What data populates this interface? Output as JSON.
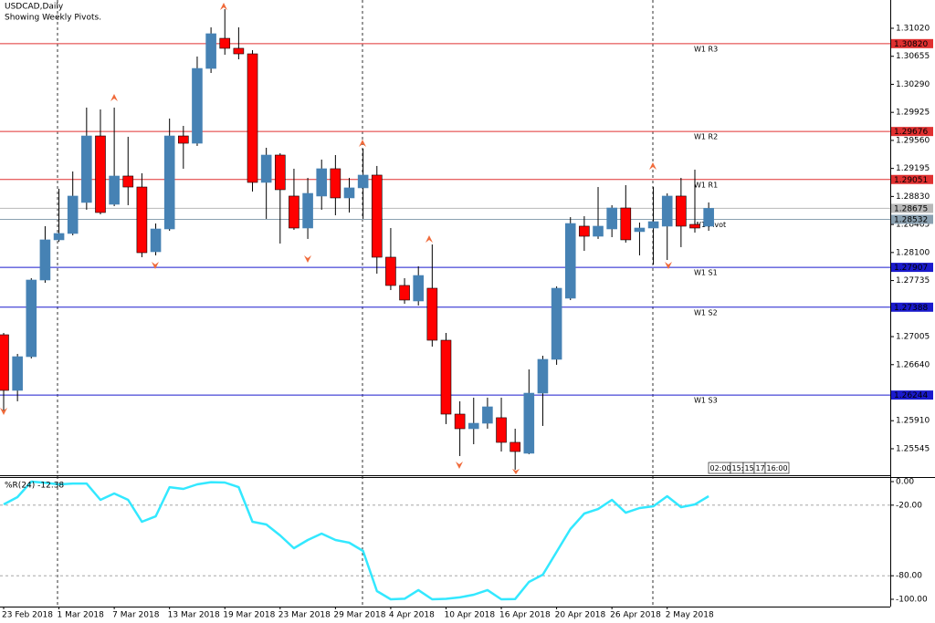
{
  "chart_data": {
    "type": "candlestick",
    "title": "USDCAD,Daily",
    "subtitle": "Showing Weekly Pivots.",
    "categories": [
      "23 Feb 2018",
      null,
      null,
      null,
      "1 Mar 2018",
      null,
      null,
      null,
      "7 Mar 2018",
      null,
      null,
      null,
      "13 Mar 2018",
      null,
      null,
      null,
      "19 Mar 2018",
      null,
      null,
      null,
      "23 Mar 2018",
      null,
      null,
      null,
      "29 Mar 2018",
      null,
      null,
      null,
      "4 Apr 2018",
      null,
      null,
      null,
      "10 Apr 2018",
      null,
      null,
      null,
      "16 Apr 2018",
      null,
      null,
      null,
      "20 Apr 2018",
      null,
      null,
      null,
      "26 Apr 2018",
      null,
      null,
      null,
      "2 May 2018",
      null,
      null,
      null
    ],
    "open": [
      1.27029,
      1.26305,
      1.26744,
      1.27742,
      1.28265,
      1.28348,
      1.28752,
      1.29618,
      1.28728,
      1.29096,
      1.28953,
      1.2811,
      1.28407,
      1.29618,
      1.29523,
      1.30497,
      1.30889,
      1.30759,
      1.30687,
      1.29013,
      1.29369,
      1.28835,
      1.28419,
      1.28835,
      1.29191,
      1.28811,
      1.28942,
      1.29108,
      1.28039,
      1.27671,
      1.27469,
      1.27635,
      1.26958,
      1.25996,
      1.25806,
      1.25877,
      1.25949,
      1.25628,
      1.25486,
      1.26269,
      1.26709,
      1.27505,
      1.28443,
      1.28312,
      1.28407,
      1.2868,
      1.28372,
      1.28419,
      1.28443,
      1.28835,
      1.28466,
      1.28443
    ],
    "high": [
      1.27053,
      1.2678,
      1.27766,
      1.28443,
      1.2893,
      1.29155,
      1.29987,
      1.29963,
      1.29987,
      1.29607,
      1.29132,
      1.28478,
      1.29844,
      1.29749,
      1.30652,
      1.31032,
      1.31269,
      1.31032,
      1.30735,
      1.29464,
      1.29393,
      1.29191,
      1.29072,
      1.2931,
      1.29369,
      1.29072,
      1.29452,
      1.29227,
      1.28419,
      1.27766,
      1.2792,
      1.28205,
      1.27053,
      1.26163,
      1.2621,
      1.2621,
      1.2621,
      1.25806,
      1.26578,
      1.26756,
      1.27659,
      1.28561,
      1.28573,
      1.28953,
      1.28716,
      1.28977,
      1.2849,
      1.28953,
      1.2887,
      1.29072,
      1.29179,
      1.28752
    ],
    "low": [
      1.26044,
      1.26163,
      1.26721,
      1.27706,
      1.28241,
      1.28324,
      1.28657,
      1.28597,
      1.28704,
      1.28716,
      1.28039,
      1.28063,
      1.28383,
      1.29191,
      1.29488,
      1.30438,
      1.30675,
      1.30616,
      1.28894,
      1.28538,
      1.28217,
      1.28395,
      1.28277,
      1.28657,
      1.28585,
      1.28621,
      1.28538,
      1.27825,
      1.27611,
      1.27433,
      1.2741,
      1.26875,
      1.25866,
      1.2545,
      1.25604,
      1.25806,
      1.25509,
      1.25272,
      1.25474,
      1.25842,
      1.26638,
      1.27481,
      1.28122,
      1.28277,
      1.283,
      1.28229,
      1.28063,
      1.27944,
      1.28003,
      1.2817,
      1.2836,
      1.28383
    ],
    "close": [
      1.26305,
      1.26744,
      1.27742,
      1.28265,
      1.28348,
      1.28835,
      1.29618,
      1.28621,
      1.29096,
      1.28953,
      1.28098,
      1.28407,
      1.29618,
      1.29523,
      1.30497,
      1.30949,
      1.30759,
      1.30687,
      1.29013,
      1.29369,
      1.28918,
      1.28419,
      1.2887,
      1.29191,
      1.28811,
      1.28942,
      1.29108,
      1.28039,
      1.27671,
      1.27481,
      1.27801,
      1.26958,
      1.25996,
      1.25806,
      1.25877,
      1.26091,
      1.25628,
      1.25509,
      1.26269,
      1.26709,
      1.27635,
      1.28478,
      1.28312,
      1.28443,
      1.2868,
      1.28265,
      1.28419,
      1.28502,
      1.28835,
      1.28443,
      1.28419,
      1.28675
    ],
    "up_color": "#4682b4",
    "down_color": "#ff0000",
    "ylim": [
      1.25212,
      1.31388
    ],
    "yticks": [
      {
        "value": 1.3102,
        "label": "1.31020"
      },
      1.30655,
      {
        "value": 1.3029,
        "label": "1.30290"
      },
      1.29925,
      {
        "value": 1.2956,
        "label": "1.29560"
      },
      1.29195,
      {
        "value": 1.2883,
        "label": "1.28830"
      },
      1.28465,
      {
        "value": 1.281,
        "label": "1.28100"
      },
      1.27735,
      1.27005,
      {
        "value": 1.2664,
        "label": "1.26640"
      },
      {
        "value": 1.2591,
        "label": "1.25910"
      },
      1.25545
    ],
    "pivots": [
      {
        "name": "W1 R3",
        "value": 1.3082,
        "label": "1.30820",
        "color": "#e03030"
      },
      {
        "name": "W1 R2",
        "value": 1.29676,
        "color": "#e03030"
      },
      {
        "name": "W1 R1",
        "value": 1.29051,
        "color": "#e03030"
      },
      {
        "name": "W1 Pivot",
        "value": 1.28532,
        "color": "#8aa0b0"
      },
      {
        "name": "W1 S1",
        "value": 1.27907,
        "color": "#1a1acd"
      },
      {
        "name": "W1 S2",
        "value": 1.27388,
        "color": "#1a1acd"
      },
      {
        "name": "W1 S3",
        "value": 1.26244,
        "color": "#1a1acd"
      }
    ],
    "current_price": {
      "value": 1.28675,
      "color": "#b8b8b8"
    },
    "time_labels": [
      "02:00",
      "15:1",
      "15:",
      "17:",
      "16:00"
    ],
    "indicator": {
      "type": "line",
      "title": "%R(24) -12.38",
      "color": "#33e8ff",
      "values": [
        -19.4,
        -13.2,
        0,
        -1.0,
        -2.3,
        -1.6,
        -1.6,
        -15.5,
        -10.1,
        -15.5,
        -34.1,
        -29.5,
        -4.7,
        -6.2,
        -2.3,
        -0.5,
        -0.8,
        -4.7,
        -34.1,
        -36.4,
        -45.7,
        -56.6,
        -49.6,
        -44.2,
        -49.6,
        -51.9,
        -58.9,
        -93.0,
        -100.0,
        -99.5,
        -92.2,
        -100.0,
        -99.6,
        -98.4,
        -96.1,
        -92.2,
        -100.0,
        -99.8,
        -85.3,
        -79.1,
        -59.7,
        -40.3,
        -27.1,
        -23.3,
        -15.5,
        -26.4,
        -22.5,
        -20.9,
        -12.4,
        -21.7,
        -19.4,
        -12.38
      ],
      "ylim": [
        -106.2,
        4.65
      ],
      "yticks": [
        {
          "value": 0,
          "label": "0.00"
        },
        {
          "value": -20,
          "label": "-20.00"
        },
        {
          "value": -80,
          "label": "-80.00"
        },
        {
          "value": -100,
          "label": "-100.00"
        }
      ],
      "levels": [
        -20,
        -80
      ]
    }
  }
}
